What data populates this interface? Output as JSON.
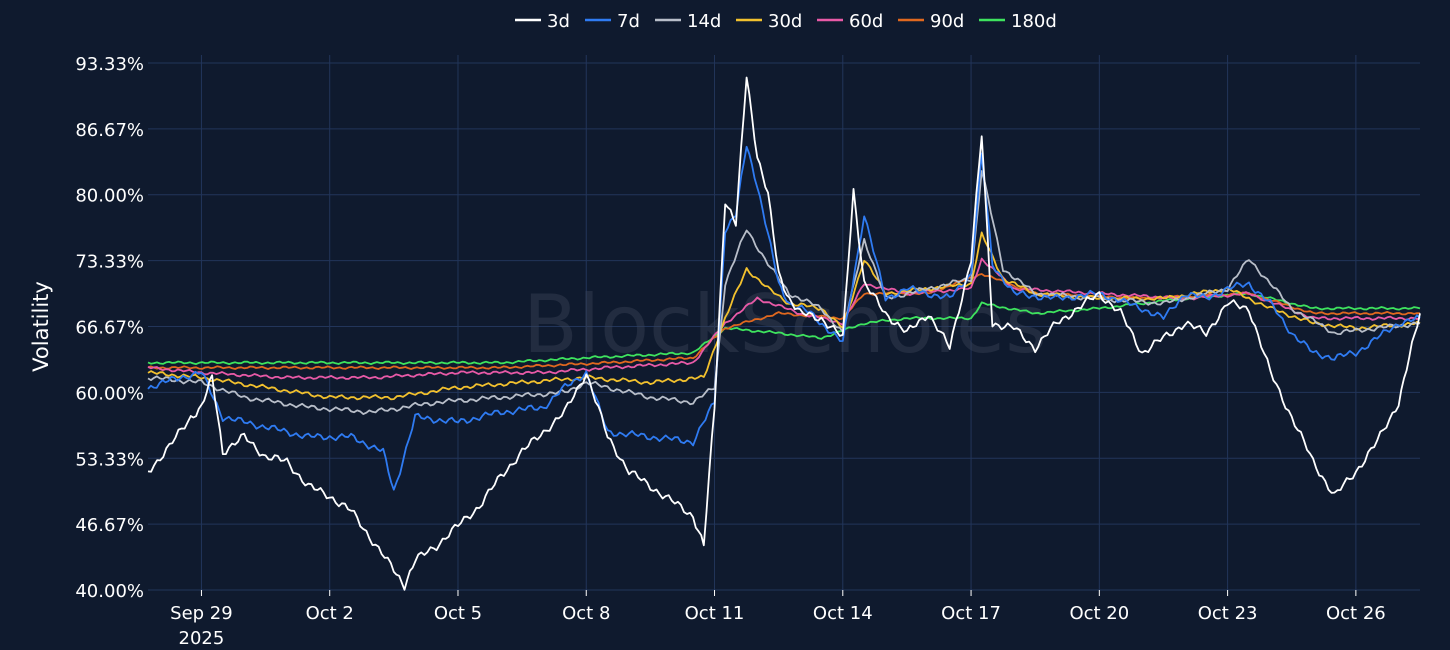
{
  "chart_data": {
    "type": "line",
    "title": "",
    "xlabel": "",
    "ylabel": "Volatility",
    "ylim": [
      40.0,
      93.33
    ],
    "y_ticks": [
      "40.00%",
      "46.67%",
      "53.33%",
      "60.00%",
      "66.67%",
      "73.33%",
      "80.00%",
      "86.67%",
      "93.33%"
    ],
    "x_range": [
      "2025-09-27T18:00",
      "2025-10-27T12:00"
    ],
    "x_ticks": [
      {
        "date": "2025-09-29",
        "label": "Sep 29",
        "sublabel": "2025"
      },
      {
        "date": "2025-10-02",
        "label": "Oct 2"
      },
      {
        "date": "2025-10-05",
        "label": "Oct 5"
      },
      {
        "date": "2025-10-08",
        "label": "Oct 8"
      },
      {
        "date": "2025-10-11",
        "label": "Oct 11"
      },
      {
        "date": "2025-10-14",
        "label": "Oct 14"
      },
      {
        "date": "2025-10-17",
        "label": "Oct 17"
      },
      {
        "date": "2025-10-20",
        "label": "Oct 20"
      },
      {
        "date": "2025-10-23",
        "label": "Oct 23"
      },
      {
        "date": "2025-10-26",
        "label": "Oct 26"
      }
    ],
    "grid": true,
    "legend_position": "top-center",
    "watermark": "BlockScholes",
    "series": [
      {
        "name": "3d",
        "color": "#ffffff",
        "x": [
          "2025-09-27T18:00",
          "2025-09-28T06:00",
          "2025-09-28T18:00",
          "2025-09-29T00:00",
          "2025-09-29T06:00",
          "2025-09-29T12:00",
          "2025-09-30T00:00",
          "2025-09-30T12:00",
          "2025-10-01T00:00",
          "2025-10-01T12:00",
          "2025-10-02T00:00",
          "2025-10-02T12:00",
          "2025-10-03T00:00",
          "2025-10-03T12:00",
          "2025-10-03T18:00",
          "2025-10-04T00:00",
          "2025-10-04T12:00",
          "2025-10-05T00:00",
          "2025-10-05T12:00",
          "2025-10-06T00:00",
          "2025-10-06T12:00",
          "2025-10-07T00:00",
          "2025-10-07T12:00",
          "2025-10-08T00:00",
          "2025-10-08T12:00",
          "2025-10-09T00:00",
          "2025-10-09T12:00",
          "2025-10-10T00:00",
          "2025-10-10T12:00",
          "2025-10-10T18:00",
          "2025-10-11T00:00",
          "2025-10-11T06:00",
          "2025-10-11T12:00",
          "2025-10-11T18:00",
          "2025-10-12T00:00",
          "2025-10-12T06:00",
          "2025-10-12T12:00",
          "2025-10-12T18:00",
          "2025-10-13T00:00",
          "2025-10-13T12:00",
          "2025-10-14T00:00",
          "2025-10-14T06:00",
          "2025-10-14T12:00",
          "2025-10-15T00:00",
          "2025-10-15T12:00",
          "2025-10-16T00:00",
          "2025-10-16T12:00",
          "2025-10-17T00:00",
          "2025-10-17T06:00",
          "2025-10-17T12:00",
          "2025-10-18T00:00",
          "2025-10-18T12:00",
          "2025-10-19T00:00",
          "2025-10-19T12:00",
          "2025-10-20T00:00",
          "2025-10-20T12:00",
          "2025-10-21T00:00",
          "2025-10-21T12:00",
          "2025-10-22T00:00",
          "2025-10-22T12:00",
          "2025-10-23T00:00",
          "2025-10-23T12:00",
          "2025-10-24T00:00",
          "2025-10-24T12:00",
          "2025-10-25T00:00",
          "2025-10-25T12:00",
          "2025-10-26T00:00",
          "2025-10-26T12:00",
          "2025-10-27T00:00",
          "2025-10-27T06:00",
          "2025-10-27T12:00"
        ],
        "values": [
          52.0,
          54.5,
          57.5,
          58.5,
          61.5,
          54.0,
          55.5,
          53.5,
          53.0,
          50.5,
          49.5,
          48.0,
          45.0,
          42.0,
          40.5,
          43.0,
          44.5,
          46.5,
          48.5,
          51.5,
          54.0,
          56.0,
          58.0,
          62.0,
          55.5,
          52.0,
          50.5,
          49.0,
          47.5,
          44.5,
          58.5,
          79.5,
          77.0,
          92.0,
          84.0,
          80.0,
          72.0,
          69.5,
          68.0,
          67.5,
          65.5,
          80.5,
          71.0,
          68.0,
          66.0,
          68.0,
          64.5,
          73.5,
          86.0,
          67.0,
          66.5,
          64.5,
          67.0,
          68.5,
          70.0,
          68.0,
          64.0,
          65.5,
          67.0,
          66.0,
          69.0,
          68.5,
          62.0,
          57.5,
          53.0,
          49.5,
          52.0,
          55.0,
          59.0,
          63.5,
          68.0
        ]
      },
      {
        "name": "7d",
        "color": "#2f7bf2",
        "x": [
          "2025-09-27T18:00",
          "2025-09-28T12:00",
          "2025-09-29T00:00",
          "2025-09-29T12:00",
          "2025-09-30T12:00",
          "2025-10-01T12:00",
          "2025-10-02T12:00",
          "2025-10-03T06:00",
          "2025-10-03T12:00",
          "2025-10-04T00:00",
          "2025-10-05T00:00",
          "2025-10-06T00:00",
          "2025-10-07T00:00",
          "2025-10-07T12:00",
          "2025-10-08T00:00",
          "2025-10-08T12:00",
          "2025-10-09T12:00",
          "2025-10-10T12:00",
          "2025-10-11T00:00",
          "2025-10-11T06:00",
          "2025-10-11T12:00",
          "2025-10-11T18:00",
          "2025-10-12T00:00",
          "2025-10-12T06:00",
          "2025-10-12T12:00",
          "2025-10-12T18:00",
          "2025-10-13T06:00",
          "2025-10-14T00:00",
          "2025-10-14T12:00",
          "2025-10-15T00:00",
          "2025-10-15T12:00",
          "2025-10-16T00:00",
          "2025-10-16T12:00",
          "2025-10-17T00:00",
          "2025-10-17T06:00",
          "2025-10-17T12:00",
          "2025-10-18T00:00",
          "2025-10-19T00:00",
          "2025-10-20T00:00",
          "2025-10-21T00:00",
          "2025-10-21T12:00",
          "2025-10-22T00:00",
          "2025-10-22T12:00",
          "2025-10-23T00:00",
          "2025-10-23T12:00",
          "2025-10-24T00:00",
          "2025-10-24T12:00",
          "2025-10-25T00:00",
          "2025-10-25T12:00",
          "2025-10-26T00:00",
          "2025-10-26T12:00",
          "2025-10-27T00:00",
          "2025-10-27T12:00"
        ],
        "values": [
          60.5,
          61.5,
          62.0,
          57.5,
          56.5,
          55.5,
          55.5,
          54.0,
          50.0,
          57.5,
          57.0,
          58.0,
          58.5,
          60.5,
          62.0,
          56.0,
          55.5,
          55.0,
          59.0,
          76.5,
          78.0,
          85.0,
          81.0,
          76.0,
          71.0,
          69.0,
          68.0,
          65.0,
          78.0,
          69.5,
          70.5,
          70.0,
          69.5,
          72.0,
          84.0,
          73.0,
          70.0,
          69.5,
          70.0,
          68.5,
          67.5,
          70.0,
          69.5,
          70.5,
          71.0,
          69.0,
          66.0,
          64.0,
          63.5,
          64.0,
          65.5,
          67.0,
          67.5
        ]
      },
      {
        "name": "14d",
        "color": "#b8bec9",
        "x": [
          "2025-09-27T18:00",
          "2025-09-29T00:00",
          "2025-09-30T00:00",
          "2025-10-01T12:00",
          "2025-10-03T00:00",
          "2025-10-04T12:00",
          "2025-10-06T00:00",
          "2025-10-07T12:00",
          "2025-10-08T00:00",
          "2025-10-09T12:00",
          "2025-10-10T12:00",
          "2025-10-11T00:00",
          "2025-10-11T06:00",
          "2025-10-11T18:00",
          "2025-10-12T06:00",
          "2025-10-12T18:00",
          "2025-10-13T12:00",
          "2025-10-14T00:00",
          "2025-10-14T12:00",
          "2025-10-15T00:00",
          "2025-10-16T00:00",
          "2025-10-17T00:00",
          "2025-10-17T06:00",
          "2025-10-17T18:00",
          "2025-10-18T12:00",
          "2025-10-20T00:00",
          "2025-10-21T12:00",
          "2025-10-23T00:00",
          "2025-10-23T12:00",
          "2025-10-24T12:00",
          "2025-10-25T12:00",
          "2025-10-26T12:00",
          "2025-10-27T12:00"
        ],
        "values": [
          61.5,
          61.0,
          59.5,
          58.5,
          58.0,
          59.0,
          59.5,
          60.0,
          61.0,
          59.5,
          59.0,
          60.5,
          71.0,
          76.5,
          73.0,
          70.0,
          68.5,
          66.0,
          75.5,
          69.5,
          70.5,
          71.5,
          82.5,
          72.5,
          70.0,
          69.5,
          69.0,
          70.5,
          73.5,
          68.5,
          66.0,
          66.5,
          67.0
        ]
      },
      {
        "name": "30d",
        "color": "#f2c12e",
        "x": [
          "2025-09-27T18:00",
          "2025-09-29T00:00",
          "2025-09-30T12:00",
          "2025-10-02T00:00",
          "2025-10-03T12:00",
          "2025-10-05T00:00",
          "2025-10-06T12:00",
          "2025-10-08T00:00",
          "2025-10-09T12:00",
          "2025-10-10T18:00",
          "2025-10-11T06:00",
          "2025-10-11T18:00",
          "2025-10-12T06:00",
          "2025-10-12T18:00",
          "2025-10-13T12:00",
          "2025-10-14T00:00",
          "2025-10-14T12:00",
          "2025-10-15T00:00",
          "2025-10-16T00:00",
          "2025-10-17T00:00",
          "2025-10-17T06:00",
          "2025-10-17T18:00",
          "2025-10-18T12:00",
          "2025-10-20T00:00",
          "2025-10-21T12:00",
          "2025-10-23T00:00",
          "2025-10-24T00:00",
          "2025-10-25T00:00",
          "2025-10-26T00:00",
          "2025-10-27T12:00"
        ],
        "values": [
          62.0,
          61.5,
          60.5,
          59.5,
          59.5,
          60.5,
          61.0,
          61.5,
          61.0,
          61.5,
          67.5,
          72.5,
          70.5,
          69.0,
          68.5,
          66.5,
          73.5,
          70.0,
          70.5,
          71.0,
          76.0,
          71.5,
          70.0,
          69.5,
          69.5,
          70.5,
          68.5,
          67.0,
          66.5,
          67.0
        ]
      },
      {
        "name": "60d",
        "color": "#e85aa7",
        "x": [
          "2025-09-27T18:00",
          "2025-09-29T00:00",
          "2025-10-01T00:00",
          "2025-10-03T00:00",
          "2025-10-05T00:00",
          "2025-10-07T00:00",
          "2025-10-08T12:00",
          "2025-10-10T12:00",
          "2025-10-11T06:00",
          "2025-10-12T00:00",
          "2025-10-13T00:00",
          "2025-10-14T00:00",
          "2025-10-14T12:00",
          "2025-10-15T12:00",
          "2025-10-17T00:00",
          "2025-10-17T06:00",
          "2025-10-18T00:00",
          "2025-10-20T00:00",
          "2025-10-22T00:00",
          "2025-10-23T12:00",
          "2025-10-25T00:00",
          "2025-10-27T12:00"
        ],
        "values": [
          62.5,
          62.0,
          61.5,
          61.5,
          62.0,
          62.0,
          62.5,
          63.0,
          67.0,
          69.5,
          68.0,
          67.0,
          71.0,
          70.0,
          70.5,
          73.5,
          70.5,
          70.0,
          69.5,
          70.0,
          67.5,
          67.5
        ]
      },
      {
        "name": "90d",
        "color": "#e0681f",
        "x": [
          "2025-09-27T18:00",
          "2025-09-30T00:00",
          "2025-10-03T00:00",
          "2025-10-06T00:00",
          "2025-10-08T12:00",
          "2025-10-10T12:00",
          "2025-10-11T06:00",
          "2025-10-12T12:00",
          "2025-10-14T00:00",
          "2025-10-14T12:00",
          "2025-10-16T00:00",
          "2025-10-17T06:00",
          "2025-10-18T12:00",
          "2025-10-21T00:00",
          "2025-10-23T12:00",
          "2025-10-25T00:00",
          "2025-10-27T12:00"
        ],
        "values": [
          62.5,
          62.5,
          62.5,
          62.5,
          63.0,
          63.5,
          66.5,
          68.0,
          67.5,
          70.0,
          70.0,
          72.0,
          70.0,
          69.5,
          70.0,
          68.0,
          68.0
        ]
      },
      {
        "name": "180d",
        "color": "#3ee35e",
        "x": [
          "2025-09-27T18:00",
          "2025-09-30T00:00",
          "2025-10-02T00:00",
          "2025-10-04T00:00",
          "2025-10-06T00:00",
          "2025-10-08T00:00",
          "2025-10-10T12:00",
          "2025-10-11T06:00",
          "2025-10-12T12:00",
          "2025-10-13T12:00",
          "2025-10-14T12:00",
          "2025-10-15T12:00",
          "2025-10-17T00:00",
          "2025-10-17T06:00",
          "2025-10-18T12:00",
          "2025-10-20T00:00",
          "2025-10-22T00:00",
          "2025-10-23T12:00",
          "2025-10-25T00:00",
          "2025-10-27T12:00"
        ],
        "values": [
          63.0,
          63.0,
          63.0,
          63.0,
          63.0,
          63.5,
          64.0,
          66.5,
          66.0,
          65.5,
          67.0,
          67.5,
          67.5,
          69.0,
          68.0,
          68.5,
          69.5,
          70.0,
          68.5,
          68.5
        ]
      }
    ]
  }
}
